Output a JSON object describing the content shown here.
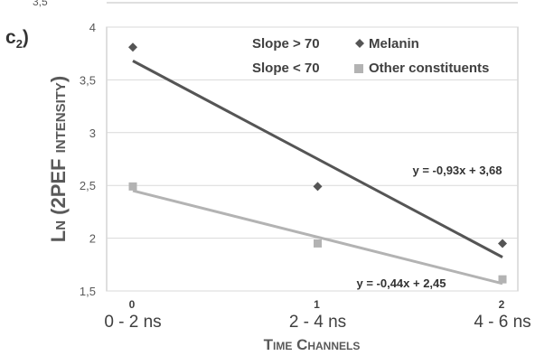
{
  "panel": {
    "letter": "c",
    "sub": "2",
    "close": ")"
  },
  "prev_top_tick": "3,5",
  "chart_data": {
    "type": "scatter",
    "ylabel": "Ln (2PEF intensity)",
    "xlabel": "Time Channels",
    "ylim": [
      1.5,
      4
    ],
    "yticks": [
      "1,5",
      "2",
      "2,5",
      "3",
      "3,5",
      "4"
    ],
    "ytick_values": [
      1.5,
      2,
      2.5,
      3,
      3.5,
      4
    ],
    "x": [
      0,
      1,
      2
    ],
    "xticks_num": [
      "0",
      "1",
      "2"
    ],
    "xticks_range": [
      "0 - 2 ns",
      "2 - 4 ns",
      "4 - 6 ns"
    ],
    "grid": "horizontal",
    "series": [
      {
        "name": "Melanin",
        "legend_prefix": "Slope > 70",
        "marker": "diamond",
        "color": "#555555",
        "values": [
          3.81,
          2.49,
          1.95
        ],
        "fit": {
          "slope": -0.93,
          "intercept": 3.68,
          "label": "y = -0,93x + 3,68",
          "color": "#555555"
        }
      },
      {
        "name": "Other constituents",
        "legend_prefix": "Slope < 70",
        "marker": "square",
        "color": "#b3b3b3",
        "values": [
          2.49,
          1.95,
          1.61
        ],
        "fit": {
          "slope": -0.44,
          "intercept": 2.45,
          "label": "y = -0,44x + 2,45",
          "color": "#b3b3b3"
        }
      }
    ]
  }
}
